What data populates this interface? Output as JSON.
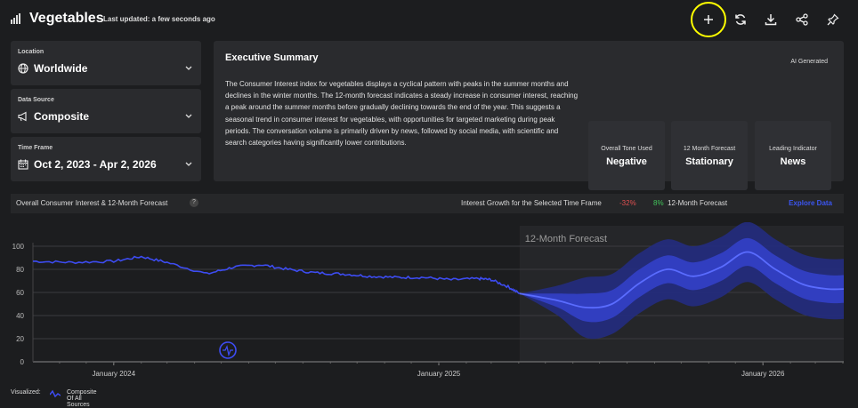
{
  "header": {
    "title": "Vegetables",
    "updated": "Last updated: a few seconds ago"
  },
  "selectors": [
    {
      "label": "Location",
      "value": "Worldwide",
      "icon": "globe-icon"
    },
    {
      "label": "Data Source",
      "value": "Composite",
      "icon": "megaphone-icon"
    },
    {
      "label": "Time Frame",
      "value": "Oct 2, 2023 - Apr 2, 2026",
      "icon": "calendar-icon"
    }
  ],
  "summary": {
    "title": "Executive Summary",
    "badge": "AI Generated",
    "body": "The Consumer Interest index for vegetables displays a cyclical pattern with peaks in the summer months and declines in the winter months. The 12-month forecast indicates a steady increase in consumer interest, reaching a peak around the summer months before gradually declining towards the end of the year. This suggests a seasonal trend in consumer interest for vegetables, with opportunities for targeted marketing during peak periods. The conversation volume is primarily driven by news, followed by social media, with scientific and search categories having significantly lower contributions.",
    "kpis": [
      {
        "label": "Overall Tone Used",
        "value": "Negative"
      },
      {
        "label": "12 Month Forecast",
        "value": "Stationary"
      },
      {
        "label": "Leading Indicator",
        "value": "News"
      }
    ]
  },
  "chart_header": {
    "title": "Overall Consumer Interest & 12-Month Forecast",
    "help": "?",
    "growth_label": "Interest Growth for the Selected Time Frame",
    "growth_value": "-32%",
    "forecast_pct": "8%",
    "forecast_label": "12-Month Forecast",
    "explore": "Explore Data"
  },
  "colors": {
    "line": "#3d4cf2",
    "band_inner": "#3340c8",
    "band_outer": "#242c80",
    "negative": "#e05050",
    "positive": "#42c45a",
    "highlight": "#ffff00"
  },
  "chart_data": {
    "type": "line",
    "forecast_label": "12-Month Forecast",
    "yticks": [
      0,
      20,
      40,
      60,
      80,
      100
    ],
    "ylim": [
      0,
      100
    ],
    "xtick_labels": [
      "January 2024",
      "January 2025",
      "January 2026"
    ],
    "x_start": "2023-10-02",
    "x_end": "2026-04-02",
    "forecast_start": "2025-04-02",
    "series": [
      {
        "name": "Composite Of All Sources",
        "x": [
          "2023-10-02",
          "2023-11-15",
          "2024-01-01",
          "2024-02-01",
          "2024-03-01",
          "2024-04-15",
          "2024-05-15",
          "2024-06-15",
          "2024-07-15",
          "2024-08-15",
          "2024-09-15",
          "2024-10-15",
          "2024-11-15",
          "2024-12-15",
          "2025-01-15",
          "2025-02-15",
          "2025-03-01",
          "2025-03-20",
          "2025-04-02"
        ],
        "values": [
          87,
          86,
          87,
          91,
          86,
          76,
          82,
          84,
          80,
          77,
          76,
          74,
          73,
          73,
          71,
          72,
          71,
          65,
          59
        ]
      },
      {
        "name": "12-Month Forecast",
        "x": [
          "2025-04-02",
          "2025-05-15",
          "2025-06-15",
          "2025-07-15",
          "2025-08-15",
          "2025-09-15",
          "2025-10-15",
          "2025-11-15",
          "2025-12-15",
          "2026-01-15",
          "2026-02-15",
          "2026-03-15",
          "2026-04-02"
        ],
        "values": [
          59,
          53,
          47,
          50,
          68,
          80,
          74,
          82,
          95,
          80,
          67,
          63,
          63
        ],
        "inner_band": 12,
        "outer_band": 26
      }
    ]
  },
  "legend": {
    "label": "Visualized:",
    "series": "Composite Of All Sources"
  },
  "badge_icon": "pulse-icon"
}
